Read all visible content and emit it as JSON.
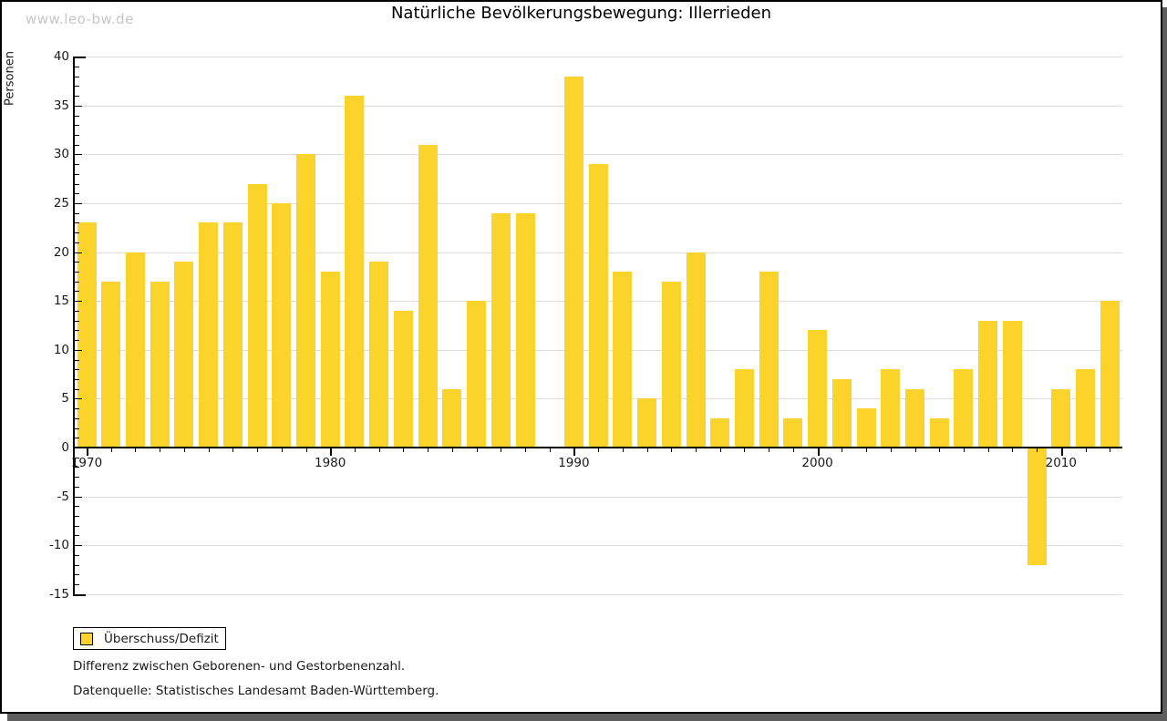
{
  "watermark": "www.leo-bw.de",
  "notes": [
    "Differenz zwischen Geborenen- und Gestorbenenzahl.",
    "Datenquelle: Statistisches Landesamt Baden-Württemberg."
  ],
  "colors": {
    "bar": "#FBD32B",
    "grid": "#DCDCDC",
    "axis": "#000000",
    "text": "#1A1A1A",
    "watermark": "#C6C6C6",
    "shadow": "#5E5E5E"
  },
  "chart_data": {
    "type": "bar",
    "title": "Natürliche Bevölkerungsbewegung: Illerrieden",
    "ylabel": "Personen",
    "xlabel": "",
    "series_name": "Überschuss/Defizit",
    "x": [
      1970,
      1971,
      1972,
      1973,
      1974,
      1975,
      1976,
      1977,
      1978,
      1979,
      1980,
      1981,
      1982,
      1983,
      1984,
      1985,
      1986,
      1987,
      1988,
      1989,
      1990,
      1991,
      1992,
      1993,
      1994,
      1995,
      1996,
      1997,
      1998,
      1999,
      2000,
      2001,
      2002,
      2003,
      2004,
      2005,
      2006,
      2007,
      2008,
      2009,
      2010,
      2011,
      2012
    ],
    "values": [
      23,
      17,
      20,
      17,
      19,
      23,
      23,
      27,
      25,
      30,
      18,
      36,
      19,
      14,
      31,
      6,
      15,
      24,
      24,
      0,
      38,
      29,
      18,
      5,
      17,
      20,
      3,
      8,
      18,
      3,
      12,
      7,
      4,
      8,
      6,
      3,
      8,
      13,
      13,
      -12,
      6,
      8,
      15
    ],
    "ylim": [
      -15,
      40
    ],
    "ytick_step": 5,
    "xtick_labels": [
      1970,
      1980,
      1990,
      2000,
      2010
    ],
    "grid": true,
    "legend_position": "bottom-left"
  }
}
